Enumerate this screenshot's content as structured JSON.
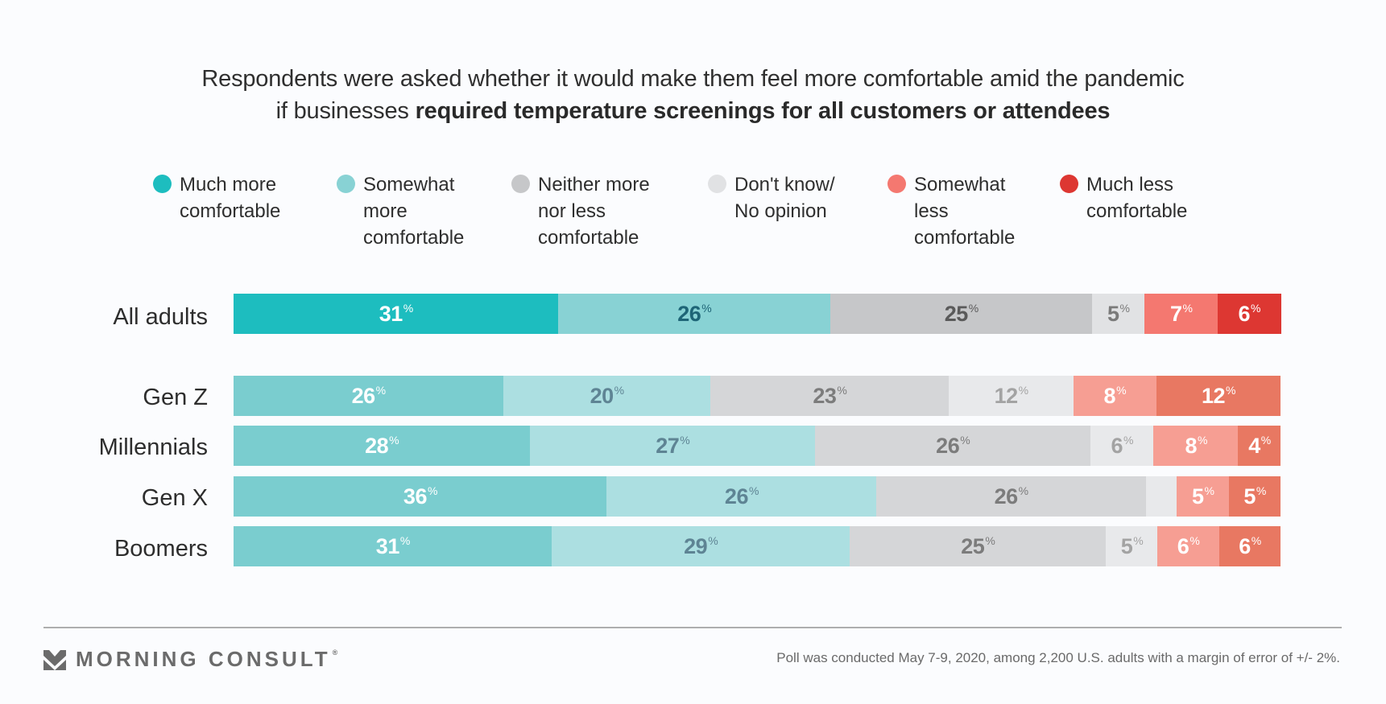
{
  "title": {
    "line1": "Respondents were asked whether it would make them feel more comfortable amid the pandemic",
    "line2_plain": "if businesses ",
    "line2_bold": "required temperature screenings for all customers or attendees"
  },
  "legend": [
    {
      "label": "Much more\ncomfortable",
      "color": "#1DBDBF"
    },
    {
      "label": "Somewhat\nmore\ncomfortable",
      "color": "#88D2D4"
    },
    {
      "label": "Neither more\nnor less\ncomfortable",
      "color": "#C6C7C9"
    },
    {
      "label": "Don't know/\nNo opinion",
      "color": "#E1E2E4"
    },
    {
      "label": "Somewhat\nless\ncomfortable",
      "color": "#F47870"
    },
    {
      "label": "Much less\ncomfortable",
      "color": "#DD3732"
    }
  ],
  "chart_data": {
    "type": "bar",
    "orientation": "horizontal",
    "stacked": true,
    "title": "Respondents were asked whether it would make them feel more comfortable amid the pandemic if businesses required temperature screenings for all customers or attendees",
    "unit": "%",
    "xlim": [
      0,
      100
    ],
    "legend_position": "top",
    "categories": [
      "All adults",
      "Gen Z",
      "Millennials",
      "Gen X",
      "Boomers"
    ],
    "series": [
      {
        "name": "Much more comfortable",
        "values": [
          31,
          26,
          28,
          36,
          31
        ]
      },
      {
        "name": "Somewhat more comfortable",
        "values": [
          26,
          20,
          27,
          26,
          29
        ]
      },
      {
        "name": "Neither more nor less comfortable",
        "values": [
          25,
          23,
          26,
          26,
          25
        ]
      },
      {
        "name": "Don't know/No opinion",
        "values": [
          5,
          12,
          6,
          3,
          5
        ]
      },
      {
        "name": "Somewhat less comfortable",
        "values": [
          7,
          8,
          8,
          5,
          6
        ]
      },
      {
        "name": "Much less comfortable",
        "values": [
          6,
          12,
          4,
          5,
          6
        ]
      }
    ],
    "labels_shown": [
      [
        true,
        true,
        true,
        true,
        true,
        true
      ],
      [
        true,
        true,
        true,
        true,
        true,
        true
      ],
      [
        true,
        true,
        true,
        true,
        true,
        true
      ],
      [
        true,
        true,
        true,
        false,
        true,
        true
      ],
      [
        true,
        true,
        true,
        true,
        true,
        true
      ]
    ],
    "row_styles": {
      "All adults": {
        "colors": [
          "#1DBDBF",
          "#88D2D4",
          "#C6C7C9",
          "#E1E2E4",
          "#F47870",
          "#DD3732"
        ],
        "text_colors": [
          "#FFFFFF",
          "#1E6577",
          "#5A5A5A",
          "#7A7A7A",
          "#FFFFFF",
          "#FFFFFF"
        ]
      },
      "default": {
        "colors": [
          "#7ACDCF",
          "#ACDFE1",
          "#D5D6D8",
          "#E8E9EB",
          "#F69E93",
          "#E87862"
        ],
        "text_colors": [
          "#FFFFFF",
          "#5E8494",
          "#7C7C7C",
          "#A3A3A3",
          "#FFFFFF",
          "#FFFFFF"
        ]
      }
    }
  },
  "footer": {
    "brand": "MORNING CONSULT",
    "brand_mark": "®",
    "note": "Poll was conducted May 7-9, 2020, among 2,200 U.S. adults with a margin of error of +/- 2%."
  }
}
